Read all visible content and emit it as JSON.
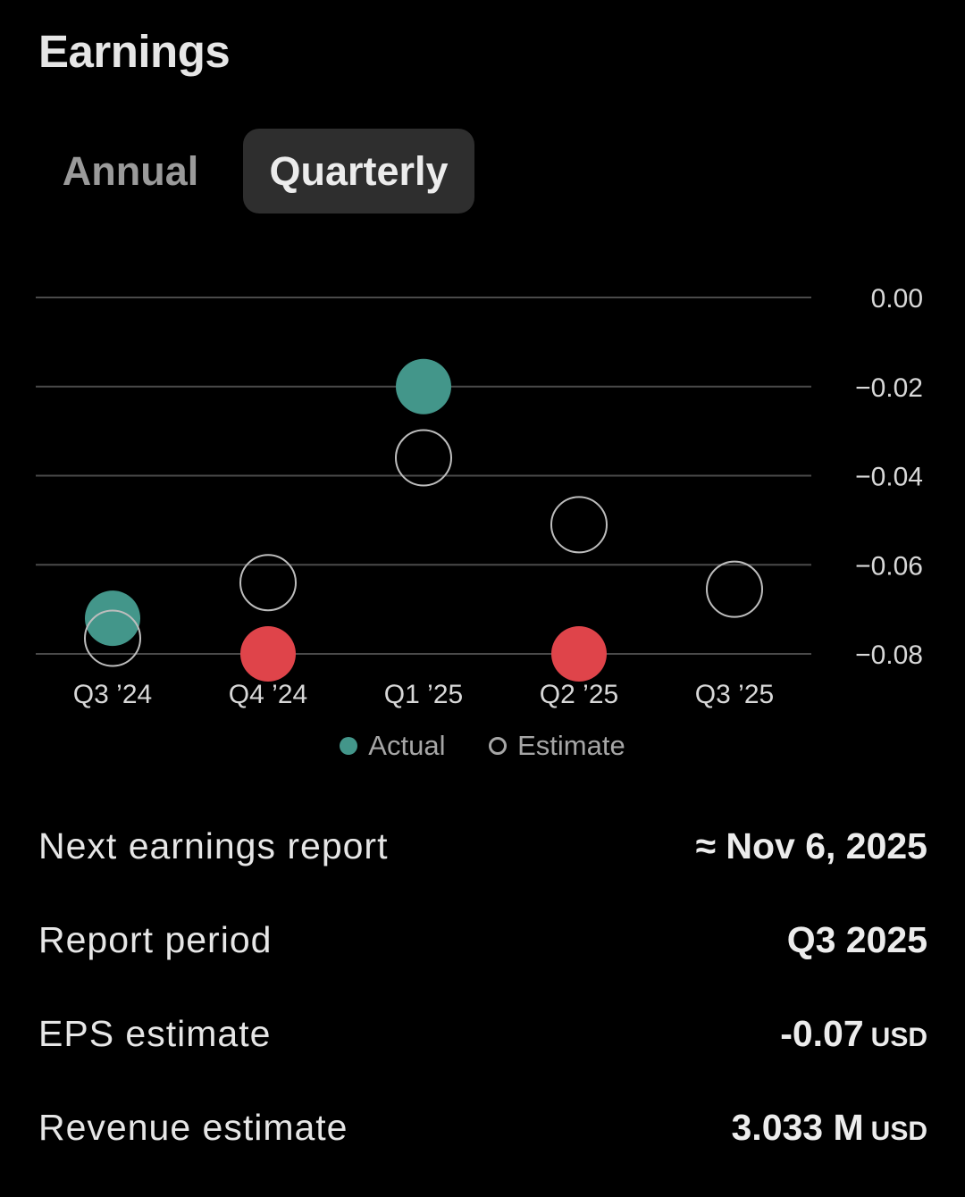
{
  "header": {
    "title": "Earnings"
  },
  "tabs": [
    {
      "label": "Annual",
      "active": false
    },
    {
      "label": "Quarterly",
      "active": true
    }
  ],
  "colors": {
    "actual_beat": "#43968a",
    "actual_miss": "#df444a",
    "estimate_stroke": "#bdbdbd",
    "grid": "#4a4a4a"
  },
  "chart_data": {
    "type": "scatter",
    "title": "",
    "xlabel": "",
    "ylabel": "",
    "categories": [
      "Q3 ’24",
      "Q4 ’24",
      "Q1 ’25",
      "Q2 ’25",
      "Q3 ’25"
    ],
    "y_ticks": [
      "0.00",
      "−0.02",
      "−0.04",
      "−0.06",
      "−0.08"
    ],
    "y_tick_values": [
      0.0,
      -0.02,
      -0.04,
      -0.06,
      -0.08
    ],
    "ylim": [
      -0.08,
      0.0
    ],
    "grid": true,
    "legend": {
      "position": "bottom-center",
      "entries": [
        "Actual",
        "Estimate"
      ]
    },
    "series": [
      {
        "name": "Actual",
        "values": [
          -0.072,
          -0.08,
          -0.02,
          -0.08,
          null
        ],
        "colors": [
          "#43968a",
          "#df444a",
          "#43968a",
          "#df444a",
          null
        ]
      },
      {
        "name": "Estimate",
        "values": [
          -0.0765,
          -0.064,
          -0.036,
          -0.051,
          -0.0655
        ]
      }
    ]
  },
  "details": {
    "next_report": {
      "label": "Next earnings report",
      "value": "≈ Nov 6, 2025"
    },
    "report_period": {
      "label": "Report period",
      "value": "Q3 2025"
    },
    "eps_estimate": {
      "label": "EPS estimate",
      "value": "-0.07",
      "unit": "USD"
    },
    "revenue_estimate": {
      "label": "Revenue estimate",
      "value": "3.033 M",
      "unit": "USD"
    }
  }
}
